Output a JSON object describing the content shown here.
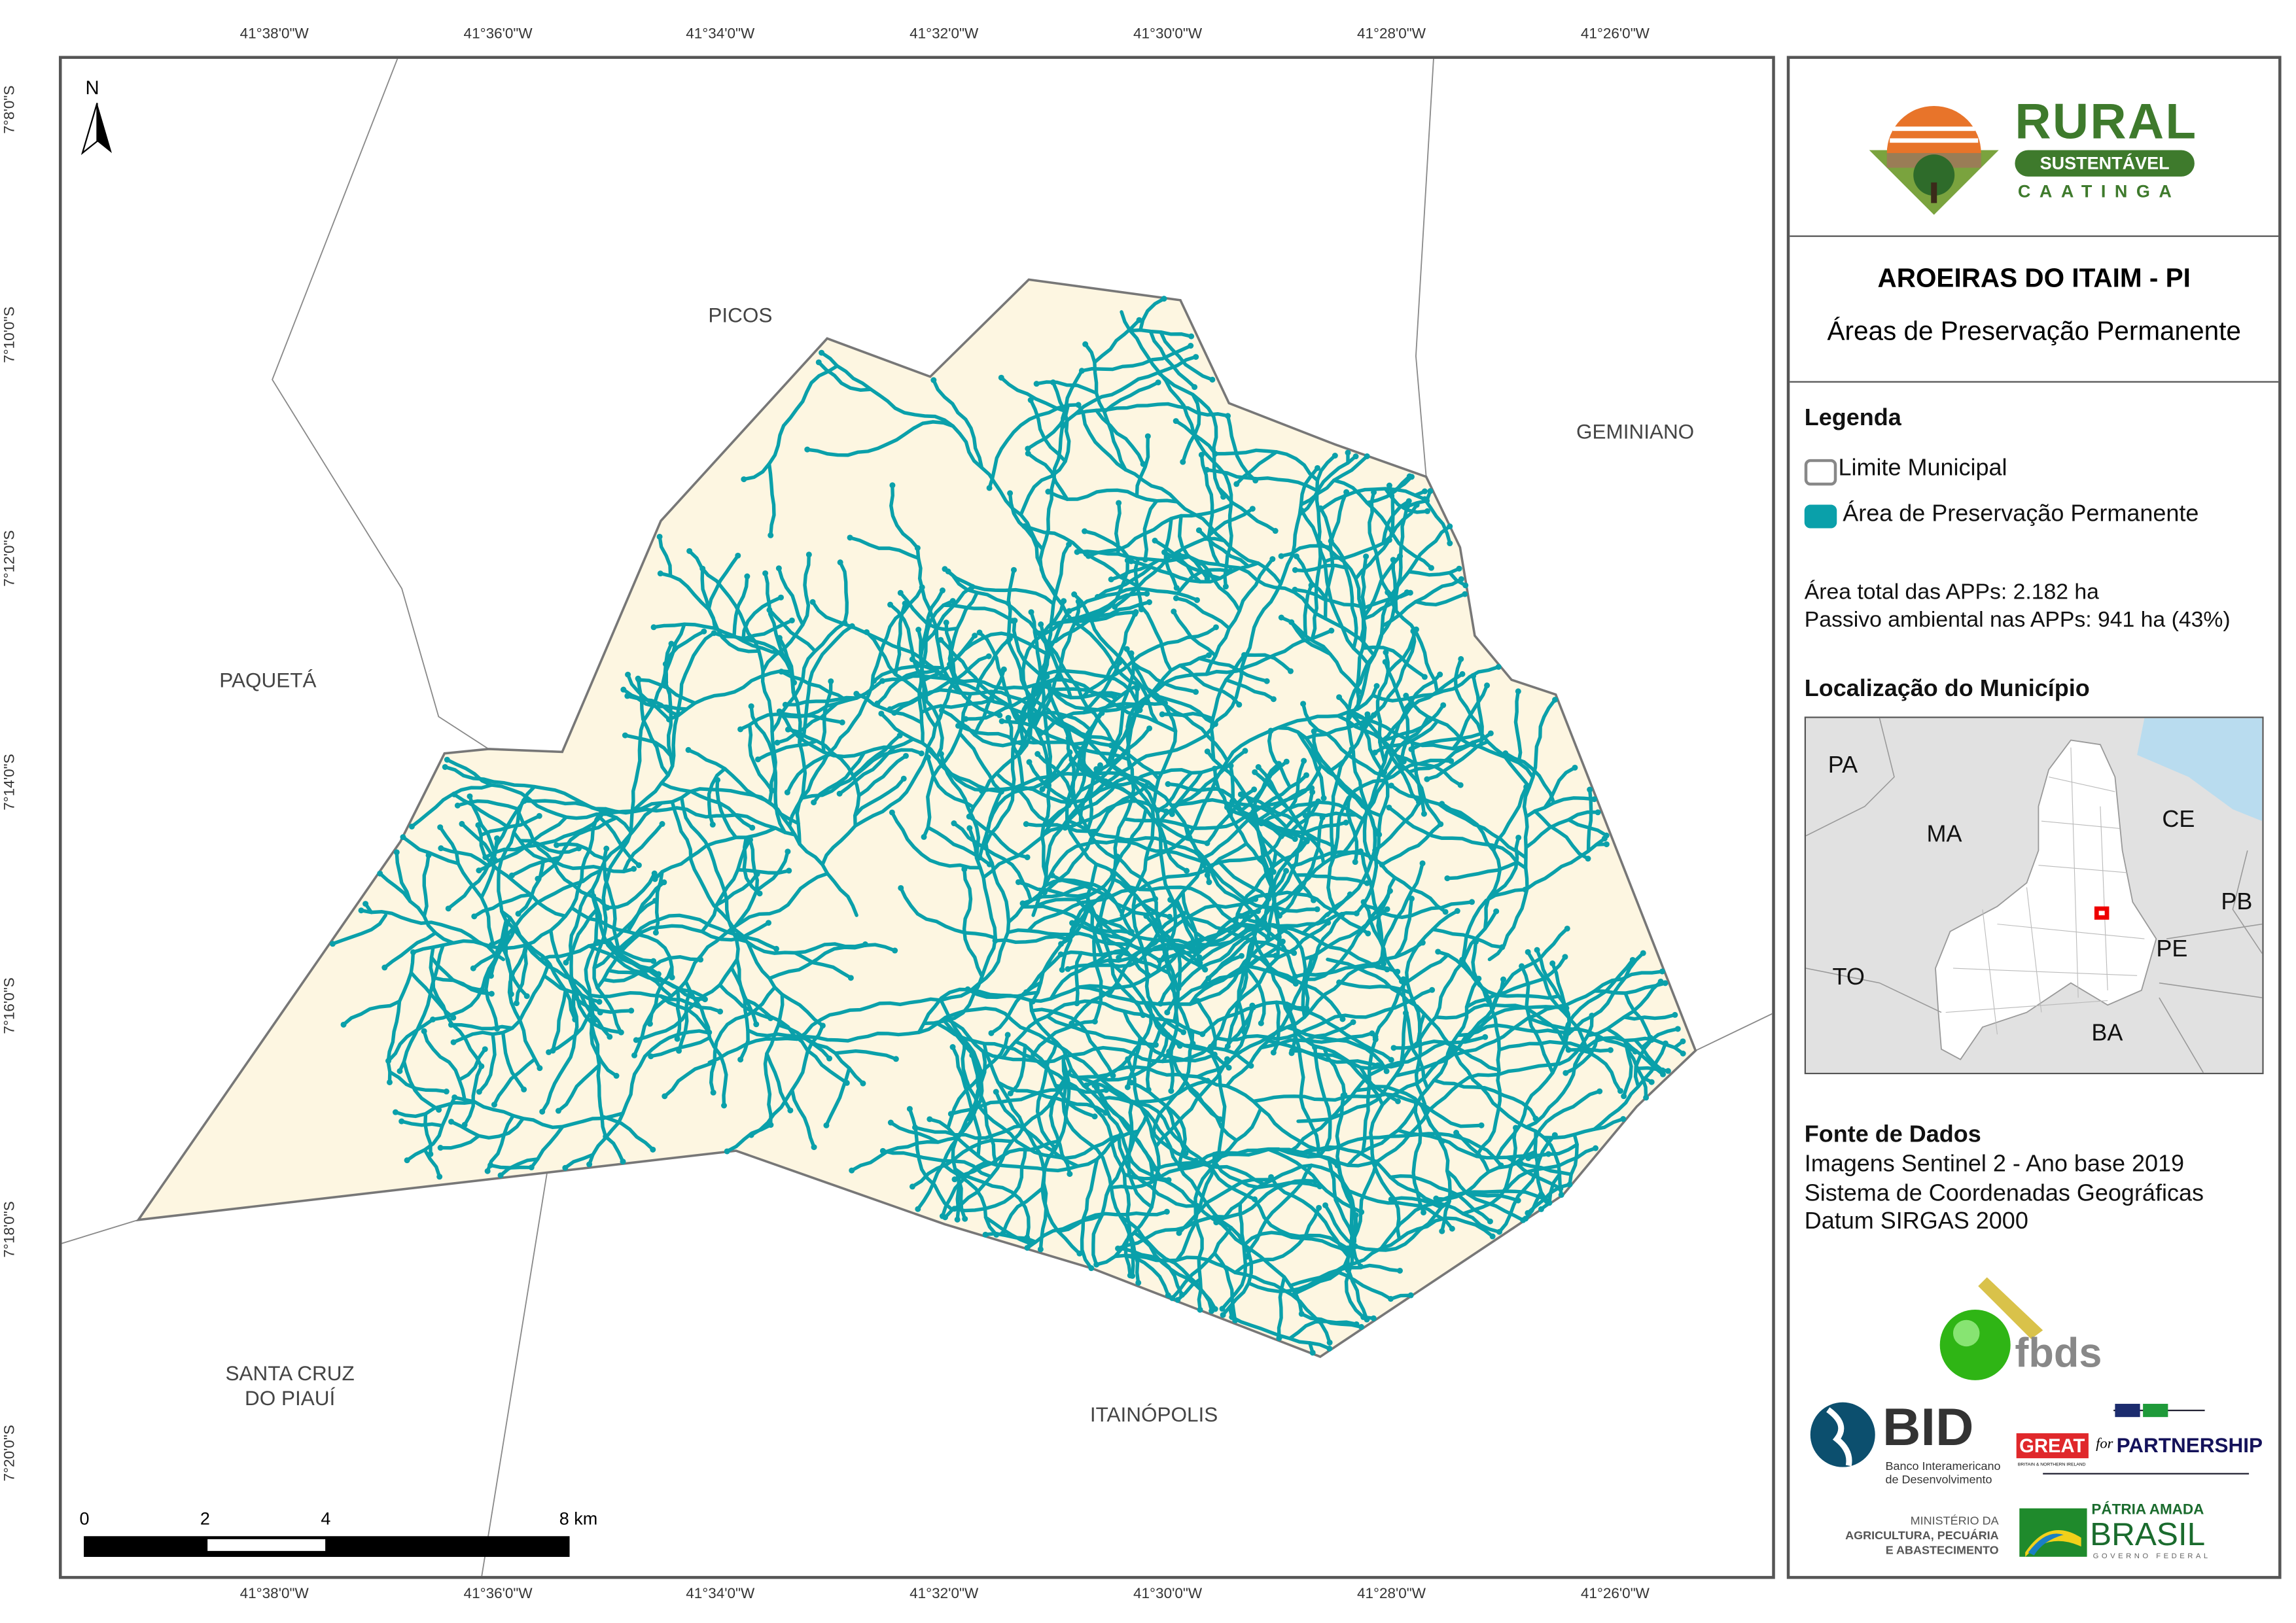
{
  "title": "AROEIRAS DO ITAIM - PI",
  "subtitle": "Áreas de Preservação Permanente",
  "logo": {
    "name": "RURAL",
    "tag": "SUSTENTÁVEL",
    "sub": "CAATINGA"
  },
  "legend": {
    "heading": "Legenda",
    "items": [
      {
        "label": "Limite Municipal",
        "color": "#ffffff",
        "border": "#888888"
      },
      {
        "label": "Área de Preservação Permanente",
        "color": "#0aa0aa"
      }
    ],
    "stats": [
      "Área total das APPs: 2.182 ha",
      "Passivo ambiental nas APPs: 941 ha (43%)"
    ]
  },
  "location": {
    "heading": "Localização do Município",
    "states": [
      "PA",
      "MA",
      "CE",
      "PB",
      "PE",
      "TO",
      "BA"
    ]
  },
  "sources": {
    "heading": "Fonte de Dados",
    "lines": [
      "Imagens Sentinel 2 - Ano base 2019",
      "Sistema de Coordenadas Geográficas",
      "Datum SIRGAS 2000"
    ]
  },
  "partners": {
    "fbds": "fbds",
    "bid": "BID",
    "bid_sub1": "Banco Interamericano",
    "bid_sub2": "de Desenvolvimento",
    "great": "GREAT",
    "great_for": "for",
    "great_partner": "PARTNERSHIP",
    "great_sub": "BRITAIN & NORTHERN IRELAND",
    "min1": "MINISTÉRIO DA",
    "min2": "AGRICULTURA, PECUÁRIA",
    "min3": "E ABASTECIMENTO",
    "brasil1": "PÁTRIA AMADA",
    "brasil2": "BRASIL",
    "brasil3": "GOVERNO FEDERAL"
  },
  "map": {
    "north": "N",
    "lon_ticks": [
      "41°38'0\"W",
      "41°36'0\"W",
      "41°34'0\"W",
      "41°32'0\"W",
      "41°30'0\"W",
      "41°28'0\"W",
      "41°26'0\"W"
    ],
    "lat_ticks": [
      "7°8'0\"S",
      "7°10'0\"S",
      "7°12'0\"S",
      "7°14'0\"S",
      "7°16'0\"S",
      "7°18'0\"S",
      "7°20'0\"S"
    ],
    "neighbors": [
      "PICOS",
      "GEMINIANO",
      "PAQUETÁ",
      "SANTA CRUZ DO PIAUÍ",
      "ITAINÓPOLIS"
    ],
    "scale": [
      "0",
      "2",
      "4",
      "8 km"
    ],
    "colors": {
      "municipality": "#fdf6e1",
      "streams": "#0aa0aa",
      "boundary": "#777777"
    }
  }
}
